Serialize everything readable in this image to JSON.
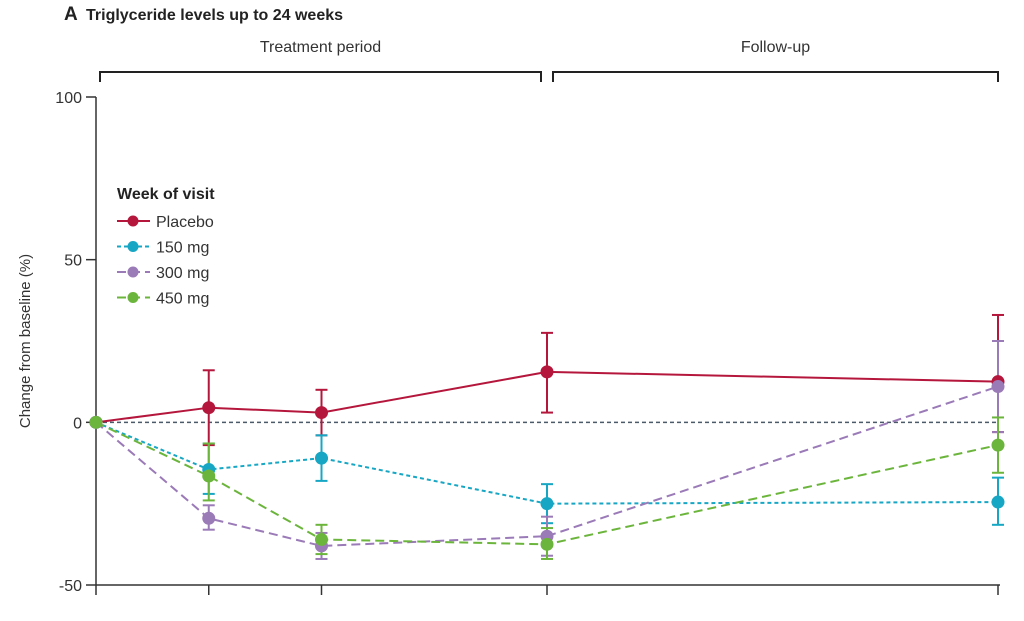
{
  "chart_data": {
    "type": "line",
    "panel_letter": "A",
    "title": "Triglyceride levels up to 24 weeks",
    "ylabel": "Change from baseline (%)",
    "ylim": [
      -50,
      100
    ],
    "yticks": [
      -50,
      0,
      50,
      100
    ],
    "reference_line_y": 0,
    "periods": [
      {
        "label": "Treatment period",
        "x_start": 0,
        "x_end": 4
      },
      {
        "label": "Follow-up",
        "x_start": 4,
        "x_end": 8
      }
    ],
    "x_visits": [
      0,
      1,
      2,
      4,
      8
    ],
    "legend": {
      "title": "Week of visit",
      "position": "upper-left"
    },
    "series": [
      {
        "name": "Placebo",
        "color": "#b5173c",
        "dash": "solid",
        "x": [
          0,
          1,
          2,
          4,
          8
        ],
        "y": [
          0,
          4.5,
          3,
          15.5,
          12.5
        ],
        "err_low": [
          0,
          -7,
          -4,
          3,
          -3
        ],
        "err_high": [
          0,
          16,
          10,
          27.5,
          33
        ]
      },
      {
        "name": "150 mg",
        "color": "#17a7c4",
        "dash": "dotted",
        "x": [
          0,
          1,
          2,
          4,
          8
        ],
        "y": [
          0,
          -14.5,
          -11,
          -25,
          -24.5
        ],
        "err_low": [
          0,
          -22,
          -18,
          -31,
          -31.5
        ],
        "err_high": [
          0,
          -6.5,
          -4,
          -19,
          -17
        ]
      },
      {
        "name": "300 mg",
        "color": "#9b7ab8",
        "dash": "dashed",
        "x": [
          0,
          1,
          2,
          4,
          8
        ],
        "y": [
          0,
          -29.5,
          -38,
          -35,
          11
        ],
        "err_low": [
          0,
          -33,
          -42,
          -41,
          -3
        ],
        "err_high": [
          0,
          -25.5,
          -34,
          -29,
          25
        ]
      },
      {
        "name": "450 mg",
        "color": "#6cb53c",
        "dash": "dashed",
        "x": [
          0,
          1,
          2,
          4,
          8
        ],
        "y": [
          0,
          -16.5,
          -36,
          -37.5,
          -7
        ],
        "err_low": [
          0,
          -24,
          -40.5,
          -42,
          -15.5
        ],
        "err_high": [
          0,
          -6.5,
          -31.5,
          -32.5,
          1.5
        ]
      }
    ],
    "grid": false
  }
}
